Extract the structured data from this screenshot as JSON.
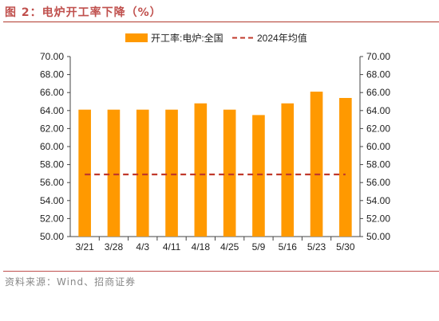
{
  "title": "图 2：电炉开工率下降（%）",
  "source": "资料来源：Wind、招商证券",
  "colors": {
    "bar": "#ff9900",
    "line": "#c0392b",
    "accent": "#c0504d"
  },
  "chart_data": {
    "type": "bar",
    "categories": [
      "3/21",
      "3/28",
      "4/3",
      "4/11",
      "4/18",
      "4/25",
      "5/9",
      "5/16",
      "5/23",
      "5/30"
    ],
    "series": [
      {
        "name": "开工率:电炉:全国",
        "type": "bar",
        "values": [
          64.1,
          64.1,
          64.1,
          64.1,
          64.8,
          64.1,
          63.5,
          64.8,
          66.1,
          65.4
        ]
      },
      {
        "name": "2024年均值",
        "type": "line",
        "style": "dashed",
        "values": [
          56.9,
          56.9,
          56.9,
          56.9,
          56.9,
          56.9,
          56.9,
          56.9,
          56.9,
          56.9
        ]
      }
    ],
    "ylim": [
      50,
      70
    ],
    "y_ticks": [
      "50.00",
      "52.00",
      "54.00",
      "56.00",
      "58.00",
      "60.00",
      "62.00",
      "64.00",
      "66.00",
      "68.00",
      "70.00"
    ],
    "y2_ticks": [
      "50.00",
      "52.00",
      "54.00",
      "56.00",
      "58.00",
      "60.00",
      "62.00",
      "64.00",
      "66.00",
      "68.00",
      "70.00"
    ],
    "legend_position": "top",
    "grid": false
  }
}
